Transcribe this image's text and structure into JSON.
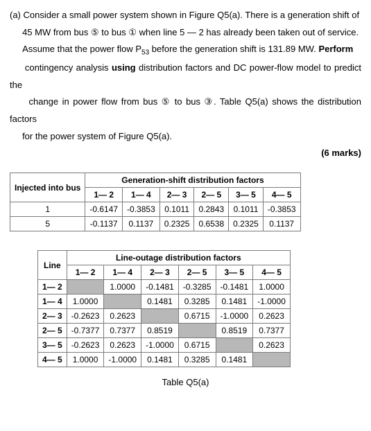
{
  "question": {
    "label_a": "(a)",
    "line1": "Consider a small power system shown in Figure Q5(a). There is a generation shift of",
    "line2": "45 MW from bus ⑤ to bus ① when line 5 — 2 has already been taken out of service.",
    "line3_pre": "Assume that the power flow P",
    "line3_sub": "53",
    "line3_mid": " before the generation shift is 131.89 MW.  ",
    "line3_bold": "Perform",
    "line4_pre": "contingency analysis ",
    "line4_bold": "using",
    "line4_post": " distribution factors and DC power-flow model to predict the",
    "line5": "change in power flow from bus ⑤ to bus ③. Table Q5(a) shows the distribution factors",
    "line6": "for the power system of Figure Q5(a).",
    "marks": "(6 marks)"
  },
  "gsdf": {
    "title": "Generation-shift distribution factors",
    "row_header": "Injected into bus",
    "cols": [
      "1— 2",
      "1— 4",
      "2— 3",
      "2— 5",
      "3— 5",
      "4— 5"
    ],
    "rows": [
      {
        "bus": "1",
        "vals": [
          "-0.6147",
          "-0.3853",
          "0.1011",
          "0.2843",
          "0.1011",
          "-0.3853"
        ]
      },
      {
        "bus": "5",
        "vals": [
          "-0.1137",
          "0.1137",
          "0.2325",
          "0.6538",
          "0.2325",
          "0.1137"
        ]
      }
    ]
  },
  "lodf": {
    "title": "Line-outage distribution factors",
    "row_header": "Line",
    "cols": [
      "1— 2",
      "1— 4",
      "2— 3",
      "2— 5",
      "3— 5",
      "4— 5"
    ],
    "rows": [
      {
        "line": "1— 2",
        "vals": [
          "",
          "1.0000",
          "-0.1481",
          "-0.3285",
          "-0.1481",
          "1.0000"
        ],
        "grey": [
          0
        ]
      },
      {
        "line": "1— 4",
        "vals": [
          "1.0000",
          "",
          "0.1481",
          "0.3285",
          "0.1481",
          "-1.0000"
        ],
        "grey": [
          1
        ]
      },
      {
        "line": "2— 3",
        "vals": [
          "-0.2623",
          "0.2623",
          "",
          "0.6715",
          "-1.0000",
          "0.2623"
        ],
        "grey": [
          2
        ]
      },
      {
        "line": "2— 5",
        "vals": [
          "-0.7377",
          "0.7377",
          "0.8519",
          "",
          "0.8519",
          "0.7377"
        ],
        "grey": [
          3
        ]
      },
      {
        "line": "3— 5",
        "vals": [
          "-0.2623",
          "0.2623",
          "-1.0000",
          "0.6715",
          "",
          "0.2623"
        ],
        "grey": [
          4
        ]
      },
      {
        "line": "4— 5",
        "vals": [
          "1.0000",
          "-1.0000",
          "0.1481",
          "0.3285",
          "0.1481",
          ""
        ],
        "grey": [
          5
        ]
      }
    ]
  },
  "caption": "Table Q5(a)"
}
